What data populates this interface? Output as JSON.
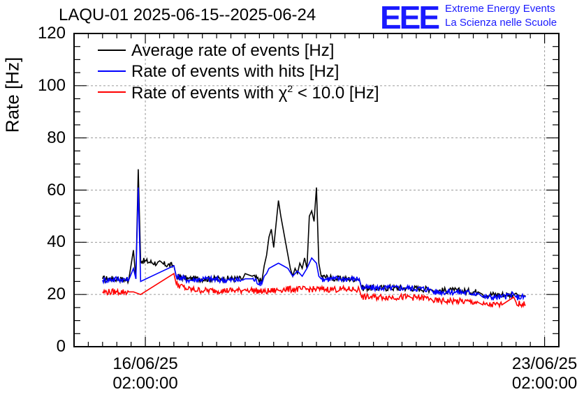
{
  "chart_data": {
    "type": "line",
    "title": "LAQU-01 2025-06-15--2025-06-24",
    "xlabel": "",
    "ylabel": "Rate [Hz]",
    "ylim": [
      0,
      120
    ],
    "yticks": [
      0,
      20,
      40,
      60,
      80,
      100,
      120
    ],
    "xlim_hours": [
      0,
      204
    ],
    "xticks": [
      {
        "date": "16/06/25",
        "time": "02:00:00",
        "hour": 30
      },
      {
        "date": "23/06/25",
        "time": "02:00:00",
        "hour": 198
      }
    ],
    "grid": true,
    "legend_position": "top-left",
    "series": [
      {
        "name": "Average rate of events [Hz]",
        "color": "#000000",
        "points": [
          [
            12,
            26
          ],
          [
            18,
            26
          ],
          [
            23,
            25.5
          ],
          [
            25,
            37
          ],
          [
            26,
            26
          ],
          [
            27,
            68
          ],
          [
            28,
            33
          ],
          [
            35,
            32
          ],
          [
            42,
            31
          ],
          [
            43,
            27
          ],
          [
            48,
            26
          ],
          [
            55,
            26
          ],
          [
            62,
            26
          ],
          [
            71,
            26
          ],
          [
            72,
            28
          ],
          [
            75,
            27
          ],
          [
            79,
            25
          ],
          [
            80,
            31
          ],
          [
            81,
            35
          ],
          [
            82,
            42
          ],
          [
            83,
            45
          ],
          [
            84,
            38
          ],
          [
            85,
            47
          ],
          [
            86,
            56
          ],
          [
            87,
            50
          ],
          [
            88,
            45
          ],
          [
            89,
            40
          ],
          [
            90,
            35
          ],
          [
            91,
            30
          ],
          [
            92,
            27
          ],
          [
            93,
            30
          ],
          [
            94,
            28
          ],
          [
            95,
            32
          ],
          [
            96,
            30
          ],
          [
            97,
            34
          ],
          [
            98,
            30
          ],
          [
            99,
            50
          ],
          [
            100,
            52
          ],
          [
            101,
            48
          ],
          [
            102,
            61
          ],
          [
            103,
            32
          ],
          [
            104,
            27
          ],
          [
            110,
            26
          ],
          [
            115,
            26
          ],
          [
            120,
            26
          ],
          [
            121,
            22.5
          ],
          [
            130,
            22.5
          ],
          [
            140,
            22.5
          ],
          [
            150,
            22
          ],
          [
            151,
            21.5
          ],
          [
            160,
            21.5
          ],
          [
            170,
            21
          ],
          [
            172,
            20
          ],
          [
            180,
            20
          ],
          [
            185,
            20
          ],
          [
            186,
            20.5
          ],
          [
            187,
            19.5
          ],
          [
            190,
            19.5
          ]
        ]
      },
      {
        "name": "Rate of events with hits [Hz]",
        "color": "#0000ff",
        "points": [
          [
            12,
            25.5
          ],
          [
            18,
            26
          ],
          [
            23,
            25.5
          ],
          [
            25,
            30
          ],
          [
            26,
            26
          ],
          [
            27,
            61
          ],
          [
            28,
            25
          ],
          [
            35,
            28
          ],
          [
            42,
            31
          ],
          [
            43,
            27
          ],
          [
            48,
            25.5
          ],
          [
            55,
            26
          ],
          [
            62,
            25.5
          ],
          [
            71,
            25.5
          ],
          [
            72,
            26
          ],
          [
            75,
            26
          ],
          [
            79,
            24
          ],
          [
            80,
            27
          ],
          [
            81,
            28
          ],
          [
            82,
            30
          ],
          [
            84,
            31
          ],
          [
            86,
            32
          ],
          [
            88,
            31
          ],
          [
            90,
            30
          ],
          [
            92,
            27
          ],
          [
            94,
            29
          ],
          [
            96,
            27
          ],
          [
            98,
            30
          ],
          [
            100,
            34
          ],
          [
            102,
            32
          ],
          [
            103,
            27
          ],
          [
            104,
            26
          ],
          [
            110,
            26
          ],
          [
            115,
            26
          ],
          [
            120,
            26
          ],
          [
            121,
            22.5
          ],
          [
            130,
            22.5
          ],
          [
            140,
            22.5
          ],
          [
            150,
            22
          ],
          [
            151,
            21
          ],
          [
            160,
            21
          ],
          [
            170,
            20.5
          ],
          [
            172,
            19
          ],
          [
            180,
            19
          ],
          [
            185,
            20
          ],
          [
            186,
            19
          ],
          [
            190,
            19
          ]
        ]
      },
      {
        "name": "Rate of events with χ² < 10.0 [Hz]",
        "color": "#ff0000",
        "points": [
          [
            12,
            21
          ],
          [
            18,
            21
          ],
          [
            23,
            21
          ],
          [
            25,
            21
          ],
          [
            28,
            20
          ],
          [
            35,
            24
          ],
          [
            42,
            28
          ],
          [
            43,
            24
          ],
          [
            48,
            22
          ],
          [
            55,
            21.5
          ],
          [
            62,
            21.5
          ],
          [
            71,
            21.5
          ],
          [
            72,
            22
          ],
          [
            80,
            21
          ],
          [
            88,
            22
          ],
          [
            96,
            22
          ],
          [
            104,
            22
          ],
          [
            110,
            22
          ],
          [
            115,
            22
          ],
          [
            120,
            22
          ],
          [
            121,
            19
          ],
          [
            130,
            19
          ],
          [
            140,
            19
          ],
          [
            150,
            18.5
          ],
          [
            151,
            17.5
          ],
          [
            160,
            17.5
          ],
          [
            170,
            17
          ],
          [
            172,
            16
          ],
          [
            180,
            16
          ],
          [
            185,
            19
          ],
          [
            186,
            17
          ],
          [
            190,
            16
          ]
        ]
      }
    ]
  },
  "logo": {
    "mark": "EEE",
    "line1": "Extreme Energy Events",
    "line2": "La Scienza nelle Scuole"
  },
  "legend": [
    {
      "label_main": "Average rate of events [Hz]",
      "label_sup": "",
      "label_end": "",
      "color": "#000000"
    },
    {
      "label_main": "Rate of events with hits [Hz]",
      "label_sup": "",
      "label_end": "",
      "color": "#0000ff"
    },
    {
      "label_main": "Rate of events with χ",
      "label_sup": "2",
      "label_end": " < 10.0 [Hz]",
      "color": "#ff0000"
    }
  ]
}
